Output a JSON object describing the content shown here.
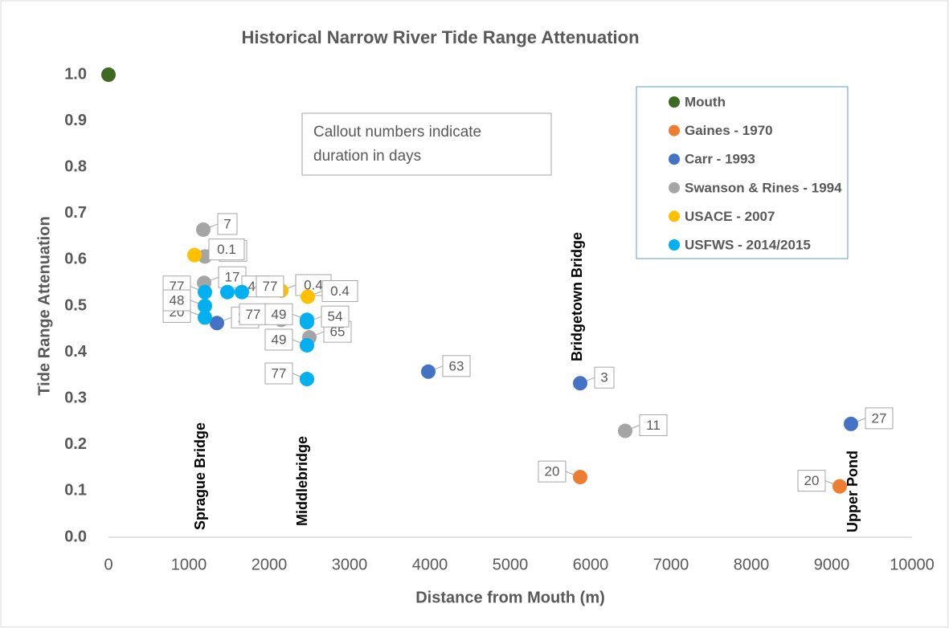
{
  "chart_data": {
    "type": "scatter",
    "title": "Historical Narrow River Tide Range Attenuation",
    "xlabel": "Distance from Mouth (m)",
    "ylabel": "Tide Range Attenuation",
    "xlim": [
      0,
      10000
    ],
    "xticks": [
      0,
      1000,
      2000,
      3000,
      4000,
      5000,
      6000,
      7000,
      8000,
      9000,
      10000
    ],
    "ylim": [
      0,
      1
    ],
    "yticks": [
      {
        "value": 0,
        "label": "0.0"
      },
      0.1,
      0.2,
      0.3,
      0.4,
      0.5,
      0.6,
      0.7,
      0.8,
      0.9,
      {
        "value": 1,
        "label": "1.0"
      }
    ],
    "legend": "upper right",
    "series": [
      {
        "name": "Mouth",
        "color": "#3f6a22",
        "x": [
          0
        ],
        "values": [
          1.0
        ]
      },
      {
        "name": "Gaines - 1970",
        "color": "#ed7d31",
        "x": [
          5870,
          9100
        ],
        "values": [
          0.13,
          0.11
        ],
        "durations": [
          20,
          20
        ]
      },
      {
        "name": "Carr - 1993",
        "color": "#4472c4",
        "x": [
          1350,
          3980,
          5870,
          9240
        ],
        "values": [
          0.463,
          0.358,
          0.333,
          0.245
        ],
        "durations": [
          15,
          63,
          3,
          27
        ]
      },
      {
        "name": "Swanson & Rines - 1994",
        "color": "#a5a5a5",
        "x": [
          1180,
          1200,
          1190,
          2150,
          2500,
          6430
        ],
        "values": [
          0.665,
          0.607,
          0.55,
          0.47,
          0.432,
          0.23
        ],
        "durations": [
          7,
          48,
          17,
          77,
          65,
          11
        ]
      },
      {
        "name": "USACE - 2007",
        "color": "#ffc000",
        "x": [
          1070,
          2150,
          2480
        ],
        "values": [
          0.61,
          0.533,
          0.52
        ],
        "durations": [
          0.1,
          0.4,
          0.4
        ]
      },
      {
        "name": "USFWS - 2014/2015",
        "color": "#00b0f0",
        "x": [
          1200,
          1200,
          1480,
          1660,
          1200,
          2470,
          2470,
          2470,
          2470
        ],
        "values": [
          0.475,
          0.53,
          0.53,
          0.53,
          0.5,
          0.47,
          0.465,
          0.415,
          0.342
        ],
        "durations": [
          20,
          77,
          49,
          77,
          48,
          49,
          54,
          49,
          77
        ]
      }
    ],
    "annotations": [
      "Callout numbers indicate duration in days",
      "Sprague Bridge",
      "Middlebridge",
      "Bridgetown Bridge",
      "Upper Pond"
    ]
  }
}
